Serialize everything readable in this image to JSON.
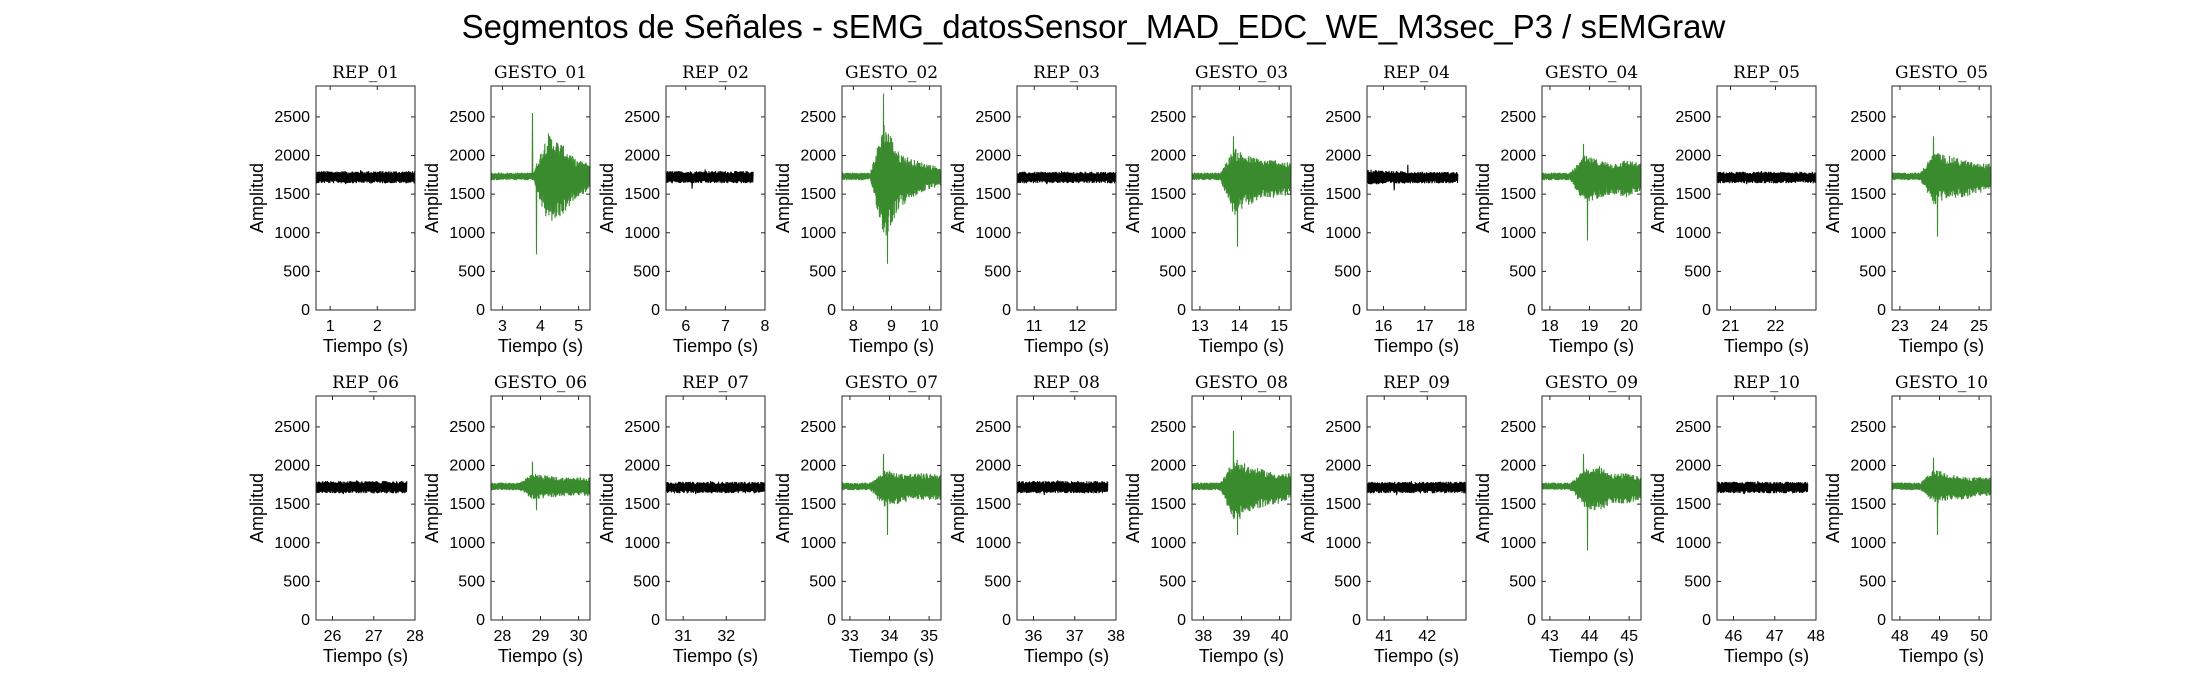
{
  "title": "Segmentos de Señales - sEMG_datosSensor_MAD_EDC_WE_M3sec_P3 / sEMGraw",
  "colors": {
    "rep": "#000000",
    "gesto": "#3a8a2e",
    "axis": "#262626"
  },
  "chart_data": {
    "type": "line",
    "layout": {
      "rows": 2,
      "cols": 10
    },
    "ylim": [
      0,
      2900
    ],
    "yticks": [
      0,
      500,
      1000,
      1500,
      2000,
      2500
    ],
    "xlabel": "Tiempo (s)",
    "ylabel": "Amplitud",
    "grid": false,
    "panels": [
      {
        "title": "REP_01",
        "kind": "rep",
        "xlim": [
          0.7,
          2.8
        ],
        "xticks": [
          1,
          2
        ],
        "data_range": [
          0.7,
          2.8
        ],
        "baseline": 1720,
        "env_high": [
          1800,
          1800,
          1800
        ],
        "env_low": [
          1640,
          1640,
          1640
        ],
        "peak_max": 1810,
        "peak_min": 1630
      },
      {
        "title": "GESTO_01",
        "kind": "gesto",
        "xlim": [
          2.7,
          5.3
        ],
        "xticks": [
          3,
          4,
          5
        ],
        "data_range": [
          2.7,
          5.3
        ],
        "baseline": 1730,
        "env_high": [
          1780,
          1780,
          1780,
          1780,
          2300,
          2150,
          1950,
          1900
        ],
        "env_low": [
          1680,
          1680,
          1680,
          1680,
          1100,
          1200,
          1450,
          1550
        ],
        "peak_max": 2550,
        "peak_min": 720
      },
      {
        "title": "REP_02",
        "kind": "rep",
        "xlim": [
          5.5,
          8.0
        ],
        "xticks": [
          6,
          7,
          8
        ],
        "data_range": [
          5.5,
          7.7
        ],
        "baseline": 1720,
        "env_high": [
          1800,
          1800,
          1800
        ],
        "env_low": [
          1640,
          1640,
          1640
        ],
        "peak_max": 1820,
        "peak_min": 1570
      },
      {
        "title": "GESTO_02",
        "kind": "gesto",
        "xlim": [
          7.7,
          10.3
        ],
        "xticks": [
          8,
          9,
          10
        ],
        "data_range": [
          7.7,
          10.3
        ],
        "baseline": 1730,
        "env_high": [
          1780,
          1780,
          1780,
          2450,
          2050,
          1950,
          1900,
          1850
        ],
        "env_low": [
          1680,
          1680,
          1680,
          900,
          1300,
          1450,
          1550,
          1600
        ],
        "peak_max": 2800,
        "peak_min": 600
      },
      {
        "title": "REP_03",
        "kind": "rep",
        "xlim": [
          10.6,
          12.9
        ],
        "xticks": [
          11,
          12
        ],
        "data_range": [
          10.6,
          12.9
        ],
        "baseline": 1720,
        "env_high": [
          1790,
          1790,
          1790
        ],
        "env_low": [
          1640,
          1640,
          1640
        ],
        "peak_max": 1800,
        "peak_min": 1630
      },
      {
        "title": "GESTO_03",
        "kind": "gesto",
        "xlim": [
          12.8,
          15.3
        ],
        "xticks": [
          13,
          14,
          15
        ],
        "data_range": [
          12.8,
          15.3
        ],
        "baseline": 1730,
        "env_high": [
          1780,
          1780,
          1780,
          2100,
          2000,
          1950,
          1950,
          1900
        ],
        "env_low": [
          1680,
          1680,
          1680,
          1200,
          1350,
          1450,
          1450,
          1500
        ],
        "peak_max": 2250,
        "peak_min": 820
      },
      {
        "title": "REP_04",
        "kind": "rep",
        "xlim": [
          15.6,
          18.0
        ],
        "xticks": [
          16,
          17,
          18
        ],
        "data_range": [
          15.6,
          17.8
        ],
        "baseline": 1720,
        "env_high": [
          1820,
          1790,
          1790
        ],
        "env_low": [
          1620,
          1640,
          1640
        ],
        "peak_max": 1880,
        "peak_min": 1550
      },
      {
        "title": "GESTO_04",
        "kind": "gesto",
        "xlim": [
          17.8,
          20.3
        ],
        "xticks": [
          18,
          19,
          20
        ],
        "data_range": [
          17.8,
          20.3
        ],
        "baseline": 1730,
        "env_high": [
          1780,
          1780,
          1780,
          2000,
          1950,
          1900,
          1950,
          1900
        ],
        "env_low": [
          1680,
          1680,
          1680,
          1350,
          1450,
          1500,
          1450,
          1550
        ],
        "peak_max": 2150,
        "peak_min": 900
      },
      {
        "title": "REP_05",
        "kind": "rep",
        "xlim": [
          20.7,
          22.9
        ],
        "xticks": [
          21,
          22
        ],
        "data_range": [
          20.7,
          22.9
        ],
        "baseline": 1720,
        "env_high": [
          1790,
          1790,
          1790
        ],
        "env_low": [
          1640,
          1640,
          1640
        ],
        "peak_max": 1800,
        "peak_min": 1630
      },
      {
        "title": "GESTO_05",
        "kind": "gesto",
        "xlim": [
          22.8,
          25.3
        ],
        "xticks": [
          23,
          24,
          25
        ],
        "data_range": [
          22.8,
          25.3
        ],
        "baseline": 1730,
        "env_high": [
          1780,
          1780,
          1780,
          2050,
          2000,
          1950,
          1900,
          1900
        ],
        "env_low": [
          1680,
          1680,
          1680,
          1350,
          1450,
          1450,
          1500,
          1550
        ],
        "peak_max": 2250,
        "peak_min": 950
      },
      {
        "title": "REP_06",
        "kind": "rep",
        "xlim": [
          25.6,
          28.0
        ],
        "xticks": [
          26,
          27,
          28
        ],
        "data_range": [
          25.6,
          27.8
        ],
        "baseline": 1720,
        "env_high": [
          1800,
          1800,
          1800
        ],
        "env_low": [
          1640,
          1640,
          1640
        ],
        "peak_max": 1810,
        "peak_min": 1630
      },
      {
        "title": "GESTO_06",
        "kind": "gesto",
        "xlim": [
          27.7,
          30.3
        ],
        "xticks": [
          28,
          29,
          30
        ],
        "data_range": [
          27.7,
          30.3
        ],
        "baseline": 1730,
        "env_high": [
          1780,
          1780,
          1780,
          1900,
          1870,
          1850,
          1850,
          1850
        ],
        "env_low": [
          1680,
          1680,
          1680,
          1550,
          1580,
          1600,
          1600,
          1600
        ],
        "peak_max": 2050,
        "peak_min": 1420
      },
      {
        "title": "REP_07",
        "kind": "rep",
        "xlim": [
          30.6,
          32.9
        ],
        "xticks": [
          31,
          32
        ],
        "data_range": [
          30.6,
          32.9
        ],
        "baseline": 1720,
        "env_high": [
          1790,
          1790,
          1790
        ],
        "env_low": [
          1640,
          1640,
          1640
        ],
        "peak_max": 1800,
        "peak_min": 1630
      },
      {
        "title": "GESTO_07",
        "kind": "gesto",
        "xlim": [
          32.8,
          35.3
        ],
        "xticks": [
          33,
          34,
          35
        ],
        "data_range": [
          32.8,
          35.3
        ],
        "baseline": 1730,
        "env_high": [
          1780,
          1780,
          1780,
          1950,
          1900,
          1900,
          1900,
          1900
        ],
        "env_low": [
          1680,
          1680,
          1680,
          1450,
          1500,
          1550,
          1550,
          1550
        ],
        "peak_max": 2150,
        "peak_min": 1100
      },
      {
        "title": "REP_08",
        "kind": "rep",
        "xlim": [
          35.6,
          38.0
        ],
        "xticks": [
          36,
          37,
          38
        ],
        "data_range": [
          35.6,
          37.8
        ],
        "baseline": 1720,
        "env_high": [
          1800,
          1800,
          1800
        ],
        "env_low": [
          1640,
          1640,
          1640
        ],
        "peak_max": 1810,
        "peak_min": 1620
      },
      {
        "title": "GESTO_08",
        "kind": "gesto",
        "xlim": [
          37.7,
          40.3
        ],
        "xticks": [
          38,
          39,
          40
        ],
        "data_range": [
          37.7,
          40.3
        ],
        "baseline": 1730,
        "env_high": [
          1780,
          1780,
          1780,
          2100,
          2000,
          1950,
          1900,
          1900
        ],
        "env_low": [
          1680,
          1680,
          1680,
          1250,
          1400,
          1450,
          1500,
          1550
        ],
        "peak_max": 2450,
        "peak_min": 1100
      },
      {
        "title": "REP_09",
        "kind": "rep",
        "xlim": [
          40.6,
          42.9
        ],
        "xticks": [
          41,
          42
        ],
        "data_range": [
          40.6,
          42.9
        ],
        "baseline": 1720,
        "env_high": [
          1790,
          1790,
          1790
        ],
        "env_low": [
          1640,
          1640,
          1640
        ],
        "peak_max": 1800,
        "peak_min": 1630
      },
      {
        "title": "GESTO_09",
        "kind": "gesto",
        "xlim": [
          42.8,
          45.3
        ],
        "xticks": [
          43,
          44,
          45
        ],
        "data_range": [
          42.8,
          45.3
        ],
        "baseline": 1730,
        "env_high": [
          1780,
          1780,
          1780,
          1950,
          2000,
          1900,
          1900,
          1850
        ],
        "env_low": [
          1680,
          1680,
          1680,
          1450,
          1400,
          1500,
          1500,
          1550
        ],
        "peak_max": 2150,
        "peak_min": 900
      },
      {
        "title": "REP_10",
        "kind": "rep",
        "xlim": [
          45.6,
          48.0
        ],
        "xticks": [
          46,
          47,
          48
        ],
        "data_range": [
          45.6,
          47.8
        ],
        "baseline": 1720,
        "env_high": [
          1790,
          1790,
          1790
        ],
        "env_low": [
          1640,
          1640,
          1640
        ],
        "peak_max": 1800,
        "peak_min": 1630
      },
      {
        "title": "GESTO_10",
        "kind": "gesto",
        "xlim": [
          47.8,
          50.3
        ],
        "xticks": [
          48,
          49,
          50
        ],
        "data_range": [
          47.8,
          50.3
        ],
        "baseline": 1730,
        "env_high": [
          1780,
          1780,
          1780,
          1950,
          1900,
          1850,
          1850,
          1850
        ],
        "env_low": [
          1680,
          1680,
          1680,
          1500,
          1550,
          1550,
          1600,
          1600
        ],
        "peak_max": 2100,
        "peak_min": 1100
      }
    ]
  }
}
